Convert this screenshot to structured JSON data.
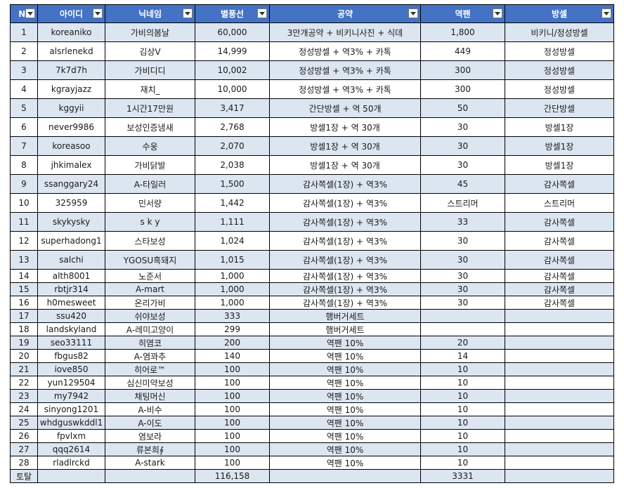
{
  "columns": [
    "N(",
    "아이디",
    "닉네임",
    "별풍선",
    "공약",
    "역팬",
    "방셀"
  ],
  "rows": [
    [
      "1",
      "koreaniko",
      "가비의봄날",
      "60,000",
      "3만개공약 + 비키니사진 + 식데",
      "1,800",
      "비키니/정성방셀"
    ],
    [
      "2",
      "alsrlenekd",
      "김상V",
      "14,999",
      "정성방셀 + 역3% + 카톡",
      "449",
      "정성방셀"
    ],
    [
      "3",
      "7k7d7h",
      "가비디디",
      "10,002",
      "정성방셀 + 역3% + 카톡",
      "300",
      "정성방셀"
    ],
    [
      "4",
      "kgrayjazz",
      "재치_",
      "10,000",
      "정성방셀 + 역3% + 카톡",
      "300",
      "정성방셀"
    ],
    [
      "5",
      "kggyii",
      "1시간17만원",
      "3,417",
      "간단방셀 + 역 50개",
      "50",
      "간단방셀"
    ],
    [
      "6",
      "never9986",
      "보성인증냄새",
      "2,768",
      "방셀1장 + 역 30개",
      "30",
      "방셀1장"
    ],
    [
      "7",
      "koreasoo",
      "수웅",
      "2,070",
      "방셀1장 + 역 30개",
      "30",
      "방셀1장"
    ],
    [
      "8",
      "jhkimalex",
      "가비닭발",
      "2,038",
      "방셀1장 + 역 30개",
      "30",
      "방셀1장"
    ],
    [
      "9",
      "ssanggary24",
      "A-타일러",
      "1,500",
      "감사쪽셀(1장) + 역3%",
      "45",
      "감사쪽셀"
    ],
    [
      "10",
      "325959",
      "민서량",
      "1,442",
      "감사쪽셀(1장) + 역3%",
      "스트리머",
      "스트리머"
    ],
    [
      "11",
      "skykysky",
      "s k y",
      "1,111",
      "감사쪽셀(1장) + 역3%",
      "33",
      "감사쪽셀"
    ],
    [
      "12",
      "superhadong1",
      "스타보성",
      "1,024",
      "감사쪽셀(1장) + 역3%",
      "30",
      "감사쪽셀"
    ],
    [
      "13",
      "salchi",
      "YGOSU흑돼지",
      "1,015",
      "감사쪽셀(1장) + 역3%",
      "30",
      "감사쪽셀"
    ],
    [
      "14",
      "alth8001",
      "노준서",
      "1,000",
      "감사쪽셀(1장) + 역3%",
      "30",
      "감사쪽셀"
    ],
    [
      "15",
      "rbtjr314",
      "A-mart",
      "1,000",
      "감사쪽셀(1장) + 역3%",
      "30",
      "감사쪽셀"
    ],
    [
      "16",
      "h0mesweet",
      "온리가비",
      "1,000",
      "감사쪽셀(1장) + 역3%",
      "30",
      "감사쪽셀"
    ],
    [
      "17",
      "ssu420",
      "쉬야보성",
      "333",
      "햄버거세트",
      "",
      ""
    ],
    [
      "18",
      "landskyland",
      "A-레미고양이",
      "299",
      "햄버거세트",
      "",
      ""
    ],
    [
      "19",
      "seo33111",
      "히염코",
      "200",
      "역팬 10%",
      "20",
      ""
    ],
    [
      "20",
      "fbgus82",
      "A-염꽈추",
      "140",
      "역팬 10%",
      "14",
      ""
    ],
    [
      "21",
      "iove850",
      "히어로™",
      "100",
      "역팬 10%",
      "10",
      ""
    ],
    [
      "22",
      "yun129504",
      "심신미약보성",
      "100",
      "역팬 10%",
      "10",
      ""
    ],
    [
      "23",
      "my7942",
      "채팅머신",
      "100",
      "역팬 10%",
      "10",
      ""
    ],
    [
      "24",
      "sinyong1201",
      "A-비수",
      "100",
      "역팬 10%",
      "10",
      ""
    ],
    [
      "25",
      "whdguswkddl1",
      "A-이도",
      "100",
      "역팬 10%",
      "10",
      ""
    ],
    [
      "26",
      "fpvlxm",
      "염보라",
      "100",
      "역팬 10%",
      "10",
      ""
    ],
    [
      "27",
      "qqq2614",
      "류본희∮",
      "100",
      "역팬 10%",
      "10",
      ""
    ],
    [
      "28",
      "rladlrckd",
      "A-stark",
      "100",
      "역팬 10%",
      "10",
      ""
    ]
  ],
  "total": [
    "토탈",
    "",
    "",
    "116,158",
    "",
    "3331",
    ""
  ],
  "tall_row_count": 13
}
